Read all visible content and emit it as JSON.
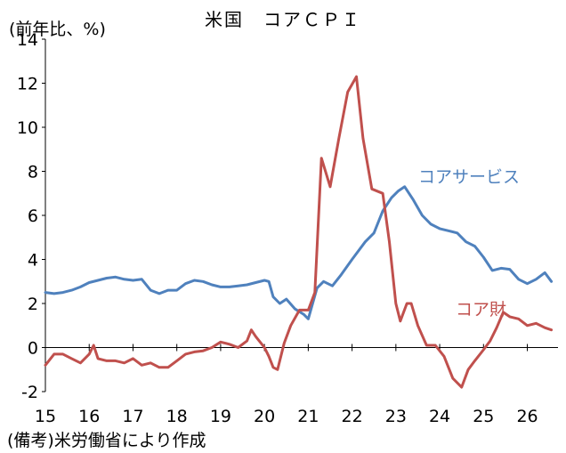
{
  "title": "米国　コアＣＰＩ",
  "unit_label": "(前年比、%)",
  "source_note": "(備考)米労働省により作成",
  "colors": {
    "blue": "#4F81BD",
    "red": "#C0504D"
  },
  "chart_data": {
    "type": "line",
    "title": "米国　コアＣＰＩ",
    "ylabel": "(前年比、%)",
    "xlabel": "",
    "ylim": [
      -2,
      14
    ],
    "y_ticks": [
      "14",
      "12",
      "10",
      "8",
      "6",
      "4",
      "2",
      "0",
      "-2"
    ],
    "x_ticks": [
      "15",
      "16",
      "17",
      "18",
      "19",
      "20",
      "21",
      "22",
      "23",
      "24",
      "25",
      "26"
    ],
    "xlim": [
      15,
      26.7
    ],
    "grid": false,
    "legend": "inline labels",
    "series": [
      {
        "name": "コアサービス",
        "color": "#4F81BD",
        "points": [
          [
            15.0,
            2.5
          ],
          [
            15.2,
            2.45
          ],
          [
            15.4,
            2.5
          ],
          [
            15.6,
            2.6
          ],
          [
            15.8,
            2.75
          ],
          [
            16.0,
            2.95
          ],
          [
            16.2,
            3.05
          ],
          [
            16.4,
            3.15
          ],
          [
            16.6,
            3.2
          ],
          [
            16.8,
            3.1
          ],
          [
            17.0,
            3.05
          ],
          [
            17.2,
            3.1
          ],
          [
            17.4,
            2.6
          ],
          [
            17.6,
            2.45
          ],
          [
            17.8,
            2.6
          ],
          [
            18.0,
            2.6
          ],
          [
            18.2,
            2.9
          ],
          [
            18.4,
            3.05
          ],
          [
            18.6,
            3.0
          ],
          [
            18.8,
            2.85
          ],
          [
            19.0,
            2.75
          ],
          [
            19.2,
            2.75
          ],
          [
            19.4,
            2.8
          ],
          [
            19.6,
            2.85
          ],
          [
            19.8,
            2.95
          ],
          [
            20.0,
            3.05
          ],
          [
            20.1,
            3.0
          ],
          [
            20.2,
            2.3
          ],
          [
            20.35,
            2.0
          ],
          [
            20.5,
            2.2
          ],
          [
            20.7,
            1.75
          ],
          [
            20.9,
            1.5
          ],
          [
            21.0,
            1.3
          ],
          [
            21.2,
            2.7
          ],
          [
            21.35,
            3.0
          ],
          [
            21.55,
            2.8
          ],
          [
            21.75,
            3.3
          ],
          [
            22.0,
            4.0
          ],
          [
            22.3,
            4.8
          ],
          [
            22.5,
            5.2
          ],
          [
            22.7,
            6.2
          ],
          [
            22.9,
            6.8
          ],
          [
            23.05,
            7.1
          ],
          [
            23.2,
            7.3
          ],
          [
            23.4,
            6.7
          ],
          [
            23.6,
            6.0
          ],
          [
            23.8,
            5.6
          ],
          [
            24.0,
            5.4
          ],
          [
            24.2,
            5.3
          ],
          [
            24.4,
            5.2
          ],
          [
            24.6,
            4.8
          ],
          [
            24.8,
            4.6
          ],
          [
            25.0,
            4.1
          ],
          [
            25.2,
            3.5
          ],
          [
            25.4,
            3.6
          ],
          [
            25.6,
            3.55
          ],
          [
            25.8,
            3.1
          ],
          [
            26.0,
            2.9
          ],
          [
            26.2,
            3.1
          ],
          [
            26.4,
            3.4
          ],
          [
            26.55,
            3.0
          ]
        ]
      },
      {
        "name": "コア財",
        "color": "#C0504D",
        "points": [
          [
            15.0,
            -0.8
          ],
          [
            15.2,
            -0.3
          ],
          [
            15.4,
            -0.3
          ],
          [
            15.6,
            -0.5
          ],
          [
            15.8,
            -0.7
          ],
          [
            16.0,
            -0.3
          ],
          [
            16.1,
            0.1
          ],
          [
            16.2,
            -0.5
          ],
          [
            16.4,
            -0.6
          ],
          [
            16.6,
            -0.6
          ],
          [
            16.8,
            -0.7
          ],
          [
            17.0,
            -0.5
          ],
          [
            17.2,
            -0.8
          ],
          [
            17.4,
            -0.7
          ],
          [
            17.6,
            -0.9
          ],
          [
            17.8,
            -0.9
          ],
          [
            18.0,
            -0.6
          ],
          [
            18.2,
            -0.3
          ],
          [
            18.4,
            -0.2
          ],
          [
            18.6,
            -0.15
          ],
          [
            18.8,
            0.0
          ],
          [
            19.0,
            0.25
          ],
          [
            19.2,
            0.15
          ],
          [
            19.4,
            0.0
          ],
          [
            19.6,
            0.3
          ],
          [
            19.7,
            0.8
          ],
          [
            19.8,
            0.5
          ],
          [
            20.0,
            0.0
          ],
          [
            20.1,
            -0.4
          ],
          [
            20.2,
            -0.9
          ],
          [
            20.3,
            -1.0
          ],
          [
            20.45,
            0.2
          ],
          [
            20.6,
            1.0
          ],
          [
            20.8,
            1.7
          ],
          [
            21.0,
            1.7
          ],
          [
            21.15,
            2.5
          ],
          [
            21.3,
            8.6
          ],
          [
            21.5,
            7.3
          ],
          [
            21.7,
            9.5
          ],
          [
            21.9,
            11.6
          ],
          [
            22.1,
            12.3
          ],
          [
            22.25,
            9.5
          ],
          [
            22.45,
            7.2
          ],
          [
            22.7,
            7.0
          ],
          [
            22.85,
            4.8
          ],
          [
            23.0,
            2.0
          ],
          [
            23.1,
            1.2
          ],
          [
            23.25,
            2.0
          ],
          [
            23.35,
            2.0
          ],
          [
            23.5,
            1.0
          ],
          [
            23.7,
            0.1
          ],
          [
            23.9,
            0.1
          ],
          [
            24.1,
            -0.4
          ],
          [
            24.3,
            -1.4
          ],
          [
            24.5,
            -1.8
          ],
          [
            24.65,
            -1.0
          ],
          [
            24.8,
            -0.6
          ],
          [
            25.0,
            -0.1
          ],
          [
            25.15,
            0.3
          ],
          [
            25.3,
            0.9
          ],
          [
            25.45,
            1.6
          ],
          [
            25.6,
            1.4
          ],
          [
            25.8,
            1.3
          ],
          [
            26.0,
            1.0
          ],
          [
            26.2,
            1.1
          ],
          [
            26.4,
            0.9
          ],
          [
            26.55,
            0.8
          ]
        ]
      }
    ]
  },
  "series_labels": {
    "blue": "コアサービス",
    "red": "コア財"
  }
}
